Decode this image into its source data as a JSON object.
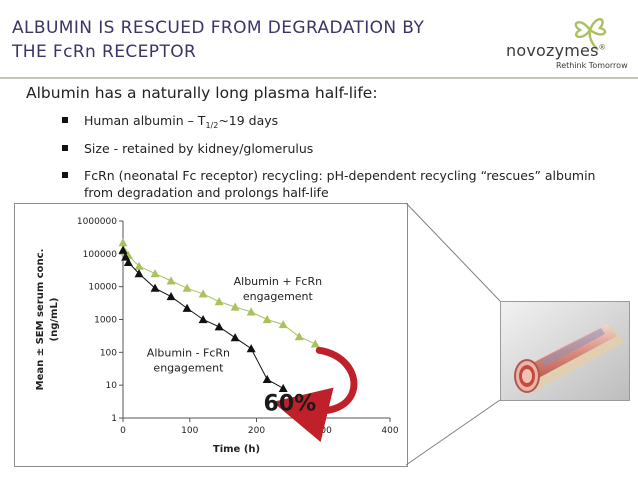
{
  "slide": {
    "title_line1": "ALBUMIN IS RESCUED FROM DEGRADATION BY",
    "title_line2": "THE FcRn RECEPTOR",
    "heading": "Albumin has a naturally long plasma half-life:",
    "bullets": {
      "b1_pre": "Human albumin – T",
      "b1_sub": "1/2",
      "b1_post": "~19 days",
      "b2": "Size - retained by kidney/glomerulus",
      "b3": "FcRn (neonatal Fc receptor) recycling: pH-dependent recycling “rescues” albumin from degradation and prolongs half-life"
    },
    "accent_color": "#3d3466"
  },
  "logo": {
    "name": "novozymes",
    "registered": "®",
    "tagline": "Rethink Tomorrow",
    "icon": "clover-leaf-icon",
    "color": "#a9c25d"
  },
  "illustration": {
    "icon": "blood-vessel-illustration"
  },
  "chart_data": {
    "type": "scatter",
    "scale_y": "log",
    "xlabel": "Time (h)",
    "ylabel_line1": "Mean ± SEM serum conc.",
    "ylabel_line2": "(ng/mL)",
    "xlim": [
      0,
      400
    ],
    "ylim": [
      1,
      1000000
    ],
    "x_ticks": [
      0,
      100,
      200,
      300,
      400
    ],
    "y_ticks": [
      1,
      10,
      100,
      1000,
      10000,
      100000,
      1000000
    ],
    "grid": false,
    "series": [
      {
        "name": "Albumin + FcRn engagement",
        "label_line1": "Albumin + FcRn",
        "label_line2": "engagement",
        "marker": "triangle",
        "color": "#a9c25d",
        "x": [
          0,
          4,
          8,
          24,
          48,
          72,
          96,
          120,
          144,
          168,
          192,
          216,
          240,
          264,
          288
        ],
        "y": [
          220000,
          110000,
          90000,
          42000,
          25000,
          15000,
          9000,
          6000,
          3500,
          2400,
          1700,
          1000,
          700,
          300,
          180
        ]
      },
      {
        "name": "Albumin - FcRn engagement",
        "label_line1": "Albumin - FcRn",
        "label_line2": "engagement",
        "marker": "triangle",
        "color": "#111111",
        "x": [
          0,
          4,
          8,
          24,
          48,
          72,
          96,
          120,
          144,
          168,
          192,
          216,
          240
        ],
        "y": [
          130000,
          80000,
          55000,
          25000,
          9000,
          5000,
          2200,
          1000,
          600,
          280,
          130,
          15,
          8
        ]
      }
    ],
    "annotation": {
      "text": "60%",
      "arrow_color": "#c0202a"
    }
  }
}
